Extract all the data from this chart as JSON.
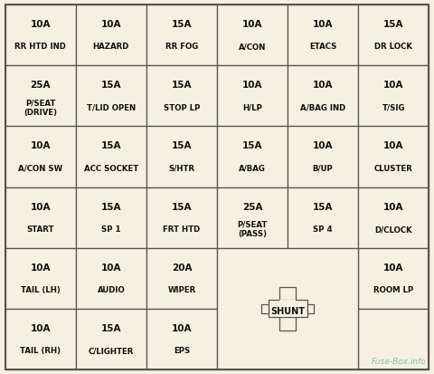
{
  "title": "Fuse-Box.info",
  "bg_color": "#f5f0e0",
  "border_color": "#555555",
  "text_color": "#111111",
  "watermark_color": "#88bbbb",
  "grid_rows": 6,
  "grid_cols": 6,
  "figwidth": 4.8,
  "figheight": 4.13,
  "dpi": 100,
  "cells": [
    {
      "row": 0,
      "col": 0,
      "amp": "10A",
      "name": "RR HTD IND"
    },
    {
      "row": 0,
      "col": 1,
      "amp": "10A",
      "name": "HAZARD"
    },
    {
      "row": 0,
      "col": 2,
      "amp": "15A",
      "name": "RR FOG"
    },
    {
      "row": 0,
      "col": 3,
      "amp": "10A",
      "name": "A/CON"
    },
    {
      "row": 0,
      "col": 4,
      "amp": "10A",
      "name": "ETACS"
    },
    {
      "row": 0,
      "col": 5,
      "amp": "15A",
      "name": "DR LOCK"
    },
    {
      "row": 1,
      "col": 0,
      "amp": "25A",
      "name": "P/SEAT\n(DRIVE)"
    },
    {
      "row": 1,
      "col": 1,
      "amp": "15A",
      "name": "T/LID OPEN"
    },
    {
      "row": 1,
      "col": 2,
      "amp": "15A",
      "name": "STOP LP"
    },
    {
      "row": 1,
      "col": 3,
      "amp": "10A",
      "name": "H/LP"
    },
    {
      "row": 1,
      "col": 4,
      "amp": "10A",
      "name": "A/BAG IND"
    },
    {
      "row": 1,
      "col": 5,
      "amp": "10A",
      "name": "T/SIG"
    },
    {
      "row": 2,
      "col": 0,
      "amp": "10A",
      "name": "A/CON SW"
    },
    {
      "row": 2,
      "col": 1,
      "amp": "15A",
      "name": "ACC SOCKET"
    },
    {
      "row": 2,
      "col": 2,
      "amp": "15A",
      "name": "S/HTR"
    },
    {
      "row": 2,
      "col": 3,
      "amp": "15A",
      "name": "A/BAG"
    },
    {
      "row": 2,
      "col": 4,
      "amp": "10A",
      "name": "B/UP"
    },
    {
      "row": 2,
      "col": 5,
      "amp": "10A",
      "name": "CLUSTER"
    },
    {
      "row": 3,
      "col": 0,
      "amp": "10A",
      "name": "START"
    },
    {
      "row": 3,
      "col": 1,
      "amp": "15A",
      "name": "SP 1"
    },
    {
      "row": 3,
      "col": 2,
      "amp": "15A",
      "name": "FRT HTD"
    },
    {
      "row": 3,
      "col": 3,
      "amp": "25A",
      "name": "P/SEAT\n(PASS)"
    },
    {
      "row": 3,
      "col": 4,
      "amp": "15A",
      "name": "SP 4"
    },
    {
      "row": 3,
      "col": 5,
      "amp": "10A",
      "name": "D/CLOCK"
    },
    {
      "row": 4,
      "col": 0,
      "amp": "10A",
      "name": "TAIL (LH)"
    },
    {
      "row": 4,
      "col": 1,
      "amp": "10A",
      "name": "AUDIO"
    },
    {
      "row": 4,
      "col": 2,
      "amp": "20A",
      "name": "WIPER"
    },
    {
      "row": 4,
      "col": 5,
      "amp": "10A",
      "name": "ROOM LP"
    },
    {
      "row": 5,
      "col": 0,
      "amp": "10A",
      "name": "TAIL (RH)"
    },
    {
      "row": 5,
      "col": 1,
      "amp": "15A",
      "name": "C/LIGHTER"
    },
    {
      "row": 5,
      "col": 2,
      "amp": "10A",
      "name": "EPS"
    }
  ],
  "shunt_label": "SHUNT",
  "amp_fontsize": 7.5,
  "name_fontsize": 6.2,
  "wm_fontsize": 6.5
}
